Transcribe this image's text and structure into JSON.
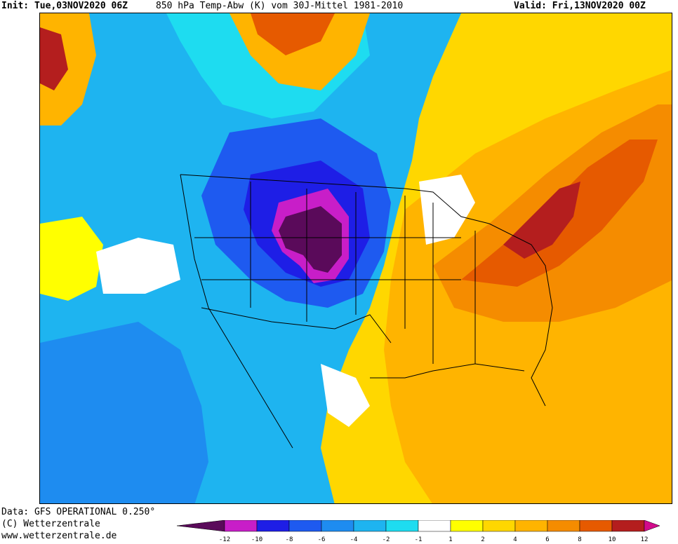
{
  "header": {
    "init": "Init: Tue,03NOV2020 06Z",
    "title": "850 hPa Temp-Abw (K) vom 30J-Mittel 1981-2010",
    "valid": "Valid: Fri,13NOV2020 00Z"
  },
  "credits": {
    "data_source": "Data: GFS OPERATIONAL 0.250°",
    "copyright": "(C) Wetterzentrale",
    "url": "www.wetterzentrale.de"
  },
  "map": {
    "variable": "850 hPa temperature anomaly",
    "units": "K",
    "region": "North America",
    "features": {
      "cold_core": "Central High Plains / northern Rockies, below -12 K",
      "warm_core": "US Northeast / mid-Atlantic, above +10 K",
      "warm_pocket_west": "Pacific far northwest corner, above +10 K"
    }
  },
  "legend": {
    "ticks": [
      "-12",
      "-10",
      "-8",
      "-6",
      "-4",
      "-2",
      "-1",
      "1",
      "2",
      "4",
      "6",
      "8",
      "10",
      "12"
    ],
    "colors": [
      "#5a0a5a",
      "#c81ec8",
      "#1e1ee6",
      "#1e5af0",
      "#1e8cf0",
      "#1eb4f0",
      "#1edcf0",
      "#ffffff",
      "#ffff00",
      "#ffd700",
      "#ffb400",
      "#f58c00",
      "#e65a00",
      "#b41e1e",
      "#d20a8c"
    ]
  }
}
